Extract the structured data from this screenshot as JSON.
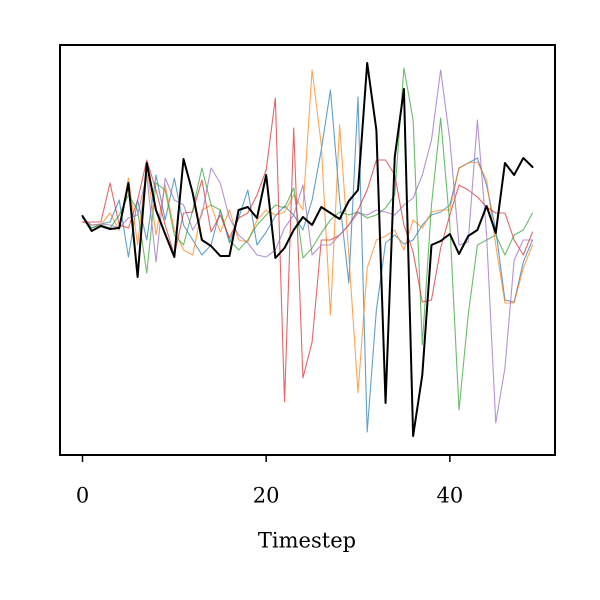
{
  "chart_data": {
    "type": "line",
    "xlabel": "Timestep",
    "x": [
      0,
      1,
      2,
      3,
      4,
      5,
      6,
      7,
      8,
      9,
      10,
      11,
      12,
      13,
      14,
      15,
      16,
      17,
      18,
      19,
      20,
      21,
      22,
      23,
      24,
      25,
      26,
      27,
      28,
      29,
      30,
      31,
      32,
      33,
      34,
      35,
      36,
      37,
      38,
      39,
      40,
      41,
      42,
      43,
      44,
      45,
      46,
      47,
      48,
      49
    ],
    "xlim": [
      -2.45,
      51.45
    ],
    "xticks": [
      0,
      20,
      40
    ],
    "ylim": [
      -205,
      205
    ],
    "series": [
      {
        "color": "#1f77b4",
        "alpha": 0.7,
        "linewidth": 1.1,
        "values": [
          34,
          22,
          26,
          28,
          50,
          -7,
          50,
          10,
          75,
          30,
          72,
          25,
          10,
          -5,
          5,
          40,
          7,
          32,
          60,
          5,
          18,
          34,
          44,
          35,
          20,
          50,
          100,
          160,
          50,
          -33,
          153,
          -182,
          -60,
          7,
          15,
          6,
          10,
          25,
          35,
          38,
          45,
          82,
          87,
          92,
          65,
          20,
          -50,
          -52,
          -12,
          10
        ]
      },
      {
        "color": "#ff7f0e",
        "alpha": 0.7,
        "linewidth": 1.1,
        "values": [
          28,
          25,
          25,
          37,
          20,
          72,
          5,
          85,
          15,
          65,
          20,
          0,
          -5,
          40,
          45,
          18,
          40,
          10,
          8,
          30,
          40,
          35,
          38,
          55,
          40,
          180,
          105,
          -65,
          125,
          -5,
          -143,
          -18,
          10,
          14,
          20,
          0,
          30,
          22,
          38,
          40,
          40,
          82,
          87,
          88,
          70,
          5,
          -53,
          -53,
          -18,
          5
        ]
      },
      {
        "color": "#2ca02c",
        "alpha": 0.7,
        "linewidth": 1.1,
        "values": [
          32,
          22,
          25,
          22,
          35,
          55,
          40,
          -23,
          67,
          60,
          15,
          5,
          40,
          82,
          45,
          40,
          10,
          0,
          10,
          25,
          35,
          45,
          42,
          62,
          -8,
          2,
          17,
          30,
          38,
          35,
          38,
          32,
          35,
          42,
          55,
          182,
          130,
          -95,
          45,
          132,
          25,
          -160,
          -65,
          5,
          10,
          15,
          -5,
          15,
          20,
          37
        ]
      },
      {
        "color": "#d62728",
        "alpha": 0.7,
        "linewidth": 1.1,
        "values": [
          28,
          28,
          28,
          67,
          25,
          22,
          50,
          90,
          60,
          25,
          -5,
          37,
          38,
          70,
          18,
          35,
          12,
          32,
          37,
          55,
          80,
          152,
          -152,
          122,
          -128,
          -92,
          10,
          10,
          15,
          25,
          40,
          60,
          90,
          90,
          75,
          25,
          -2,
          -52,
          -50,
          2,
          35,
          65,
          60,
          53,
          43,
          37,
          37,
          10,
          -5,
          18
        ]
      },
      {
        "color": "#9467bd",
        "alpha": 0.7,
        "linewidth": 1.1,
        "values": [
          32,
          25,
          26,
          25,
          22,
          32,
          35,
          75,
          -12,
          72,
          50,
          45,
          20,
          35,
          82,
          67,
          32,
          15,
          7,
          -5,
          -7,
          0,
          22,
          35,
          65,
          -5,
          5,
          5,
          15,
          25,
          37,
          35,
          40,
          38,
          35,
          45,
          52,
          75,
          110,
          180,
          110,
          5,
          8,
          130,
          15,
          -173,
          -118,
          -10,
          10,
          10
        ]
      },
      {
        "color": "#000000",
        "alpha": 1,
        "linewidth": 2,
        "values": [
          34,
          19,
          24,
          21,
          22,
          67,
          -27,
          87,
          40,
          16,
          -7,
          91,
          57,
          10,
          4,
          -6,
          -6,
          40,
          43,
          32,
          75,
          -8,
          2,
          20,
          33,
          25,
          43,
          37,
          31,
          49,
          60,
          187,
          120,
          -153,
          93,
          161,
          -186,
          -125,
          5,
          9,
          16,
          -4,
          14,
          20,
          44,
          17,
          87,
          75,
          92,
          83
        ]
      }
    ]
  }
}
